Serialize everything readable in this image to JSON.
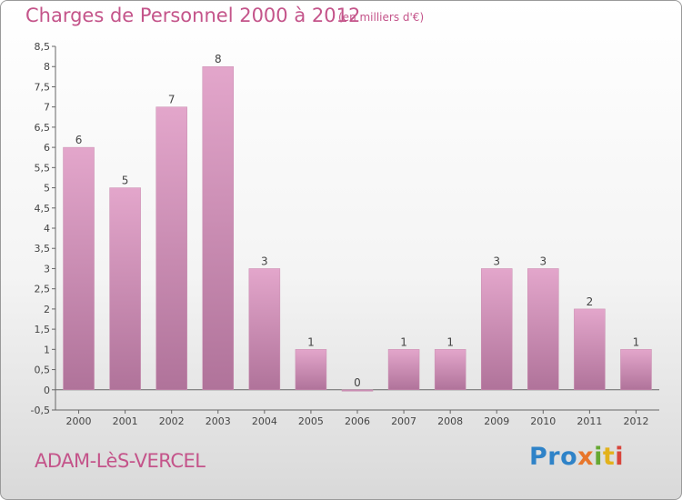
{
  "header": {
    "title": "Charges de Personnel 2000 à 2012",
    "subtitle": "(en milliers d'€)"
  },
  "footer": {
    "commune": "ADAM-LèS-VERCEL",
    "brand_parts": [
      "Pro",
      "x",
      "i",
      "t",
      "i"
    ]
  },
  "colors": {
    "title": "#c4548a",
    "bar_top": "#e3a6cb",
    "bar_bottom": "#b0739a",
    "axis": "#666666"
  },
  "chart_data": {
    "type": "bar",
    "title": "Charges de Personnel 2000 à 2012",
    "subtitle": "(en milliers d'€)",
    "categories": [
      "2000",
      "2001",
      "2002",
      "2003",
      "2004",
      "2005",
      "2006",
      "2007",
      "2008",
      "2009",
      "2010",
      "2011",
      "2012"
    ],
    "values": [
      6,
      5,
      7,
      8,
      3,
      1,
      0,
      1,
      1,
      3,
      3,
      2,
      1
    ],
    "value_labels": [
      "6",
      "5",
      "7",
      "8",
      "3",
      "1",
      "0",
      "1",
      "1",
      "3",
      "3",
      "2",
      "1"
    ],
    "ylim": [
      -0.5,
      8.5
    ],
    "yticks": [
      -0.5,
      0,
      0.5,
      1,
      1.5,
      2,
      2.5,
      3,
      3.5,
      4,
      4.5,
      5,
      5.5,
      6,
      6.5,
      7,
      7.5,
      8,
      8.5
    ],
    "ytick_labels": [
      "-0,5",
      "0",
      "0,5",
      "1",
      "1,5",
      "2",
      "2,5",
      "3",
      "3,5",
      "4",
      "4,5",
      "5",
      "5,5",
      "6",
      "6,5",
      "7",
      "7,5",
      "8",
      "8,5"
    ],
    "grid": false,
    "xlabel": "",
    "ylabel": ""
  }
}
